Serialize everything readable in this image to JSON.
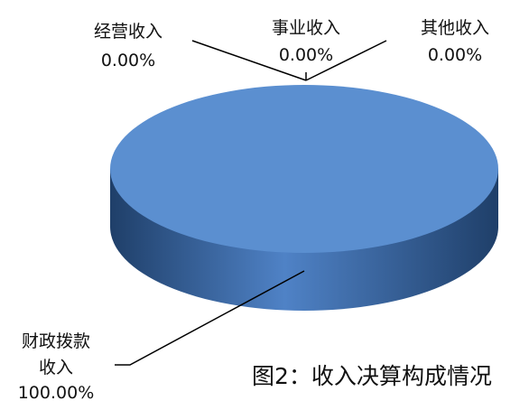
{
  "chart_data": {
    "type": "pie",
    "title": "图2：收入决算构成情况",
    "is_3d": true,
    "slices": [
      {
        "label": "财政拨款收入",
        "display_label": [
          "财政拨款",
          "收入"
        ],
        "value_text": "100.00%",
        "value": 100.0
      },
      {
        "label": "经营收入",
        "display_label": [
          "经营收入"
        ],
        "value_text": "0.00%",
        "value": 0.0
      },
      {
        "label": "事业收入",
        "display_label": [
          "事业收入"
        ],
        "value_text": "0.00%",
        "value": 0.0
      },
      {
        "label": "其他收入",
        "display_label": [
          "其他收入"
        ],
        "value_text": "0.00%",
        "value": 0.0
      }
    ],
    "colors": {
      "pie_top": "#5b8fd0",
      "pie_side_light": "#4f82c6",
      "pie_side_dark": "#1f3f69",
      "leader_line": "#000000"
    }
  }
}
